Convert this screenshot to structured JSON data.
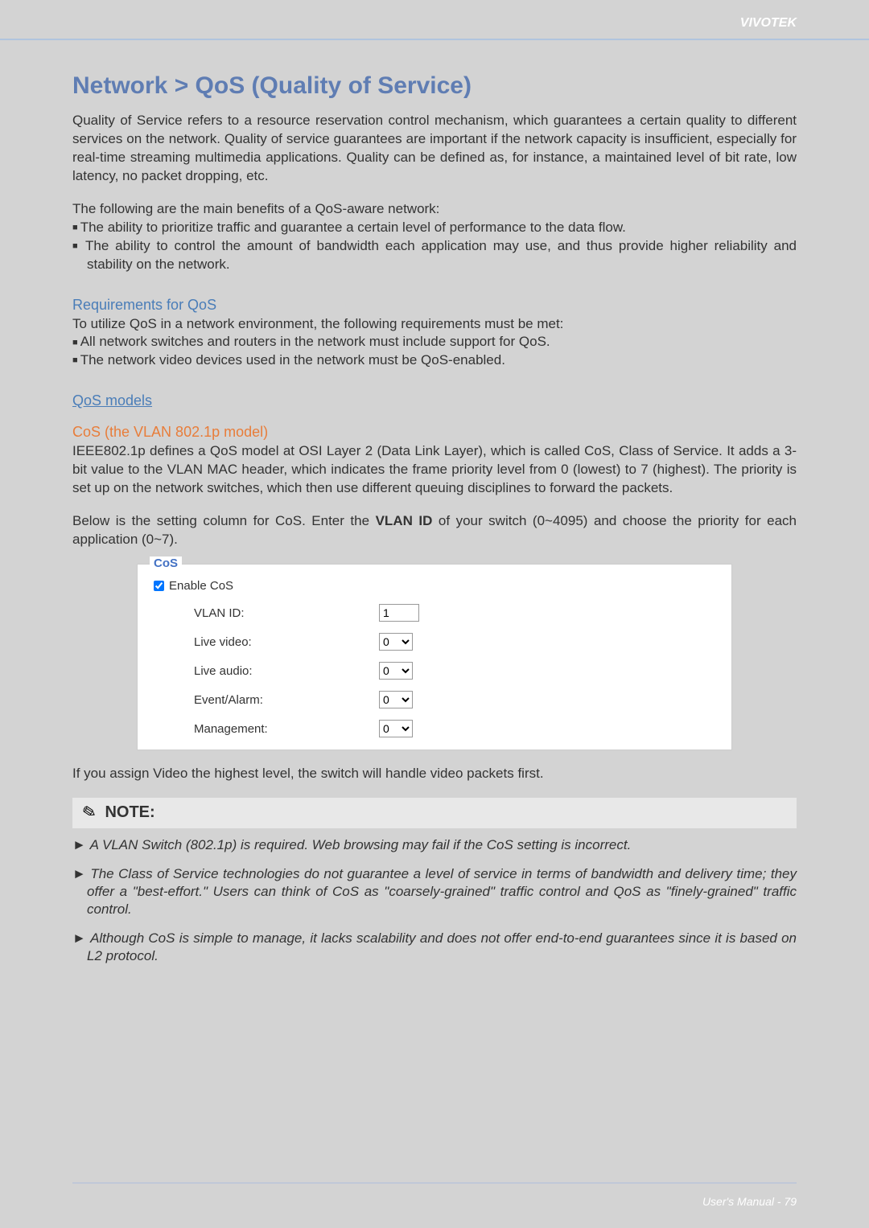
{
  "header": {
    "brand": "VIVOTEK"
  },
  "title": "Network > QoS (Quality of Service)",
  "intro": "Quality of Service refers to a resource reservation control mechanism, which guarantees a certain quality to different services on the network. Quality of service guarantees are important if the network capacity is insufficient, especially for real-time streaming multimedia applications. Quality can be defined as, for instance, a maintained level of bit rate, low latency, no packet dropping, etc.",
  "benefits_lead": "The following are the main benefits of a QoS-aware network:",
  "benefits": [
    "The ability to prioritize traffic and guarantee a certain level of performance to the data flow.",
    "The ability to control the amount of bandwidth each application may use, and thus provide higher reliability and stability on the network."
  ],
  "req_heading": "Requirements for QoS",
  "req_lead": "To utilize QoS in a network environment, the following requirements must be met:",
  "req_items": [
    "All network switches and routers in the network must include support for QoS.",
    "The network video devices used in the network must be QoS-enabled."
  ],
  "models_heading": "QoS models",
  "cos_heading": "CoS (the VLAN 802.1p model)",
  "cos_para": "IEEE802.1p defines a QoS model at OSI Layer 2 (Data Link Layer), which is called CoS, Class of Service. It adds a 3-bit value to the VLAN MAC header, which indicates the frame priority level from 0 (lowest) to 7 (highest). The priority is set up on the network switches, which then use different queuing disciplines to forward the packets.",
  "cos_below_pre": "Below is the setting column for CoS. Enter the ",
  "cos_below_bold": "VLAN ID",
  "cos_below_post": " of your switch (0~4095) and choose the priority for each application (0~7).",
  "cos_form": {
    "legend": "CoS",
    "enable_label": "Enable CoS",
    "fields": {
      "vlan_id": {
        "label": "VLAN ID:",
        "value": "1"
      },
      "live_video": {
        "label": "Live video:",
        "value": "0"
      },
      "live_audio": {
        "label": "Live audio:",
        "value": "0"
      },
      "event_alarm": {
        "label": "Event/Alarm:",
        "value": "0"
      },
      "management": {
        "label": "Management:",
        "value": "0"
      }
    }
  },
  "assign_text": "If you assign Video the highest level, the switch will handle video packets first.",
  "note_title": "NOTE:",
  "notes": [
    "A VLAN Switch (802.1p) is required. Web browsing may fail if the CoS setting is incorrect.",
    "The Class of Service technologies do not guarantee a level of service in terms of bandwidth and delivery time; they offer a \"best-effort.\" Users can think of CoS as \"coarsely-grained\" traffic control and QoS as \"finely-grained\" traffic control.",
    "Although CoS is simple to manage, it lacks scalability and does not offer end-to-end guarantees since it is based on L2 protocol."
  ],
  "footer": "User's Manual - 79"
}
